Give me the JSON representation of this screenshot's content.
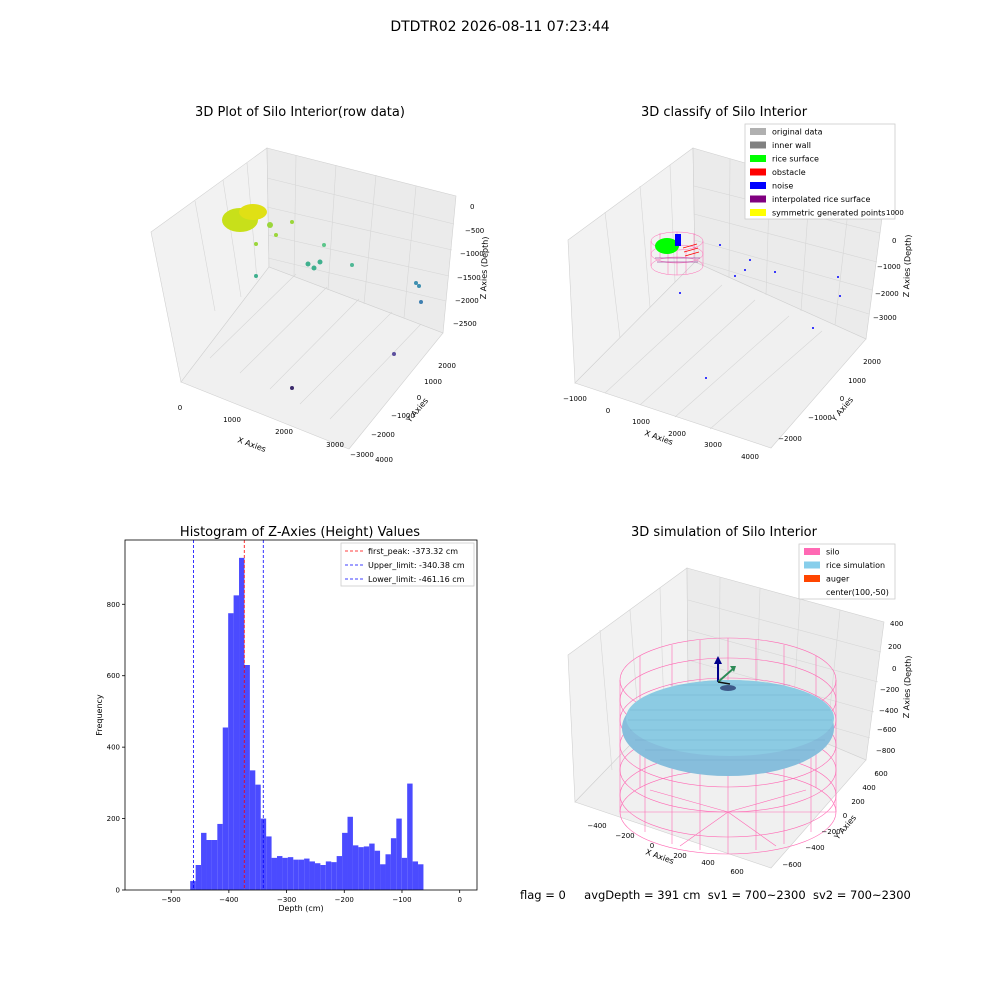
{
  "figure": {
    "suptitle": "DTDTR02 2026-08-11 07:23:44",
    "footer": {
      "flag": "flag = 0",
      "avg_depth": "avgDepth = 391 cm",
      "sv1": "sv1 = 700~2300",
      "sv2": "sv2 = 700~2300"
    }
  },
  "panels": {
    "raw": {
      "title": "3D Plot of Silo Interior(row data)",
      "xlabel": "X Axies",
      "ylabel": "Y Axies",
      "zlabel": "Z Axies (Depth)",
      "xticks": [
        "0",
        "1000",
        "2000",
        "3000",
        "4000"
      ],
      "yticks": [
        "−3000",
        "−2000",
        "−1000",
        "0",
        "1000",
        "2000"
      ],
      "zticks": [
        "0",
        "−500",
        "−1000",
        "−1500",
        "−2000",
        "−2500"
      ]
    },
    "classify": {
      "title": "3D classify of Silo Interior",
      "xlabel": "X Axies",
      "ylabel": "Y Axies",
      "zlabel": "Z Axies (Depth)",
      "xticks": [
        "−1000",
        "0",
        "1000",
        "2000",
        "3000",
        "4000"
      ],
      "yticks": [
        "−2000",
        "−1000",
        "0",
        "1000",
        "2000"
      ],
      "zticks": [
        "1000",
        "0",
        "−1000",
        "−2000",
        "−3000"
      ],
      "legend": [
        {
          "label": "original data",
          "color": "#b0b0b0"
        },
        {
          "label": "inner wall",
          "color": "#808080"
        },
        {
          "label": "rice surface",
          "color": "#00ff00"
        },
        {
          "label": "obstacle",
          "color": "#ff0000"
        },
        {
          "label": "noise",
          "color": "#0000ff"
        },
        {
          "label": "interpolated rice surface",
          "color": "#800080"
        },
        {
          "label": "symmetric generated points",
          "color": "#ffff00"
        }
      ]
    },
    "simulation": {
      "title": "3D simulation of Silo Interior",
      "xlabel": "X Axies",
      "ylabel": "Y Axies",
      "zlabel": "Z Axies (Depth)",
      "xticks": [
        "−400",
        "−200",
        "0",
        "200",
        "400",
        "600"
      ],
      "yticks": [
        "−600",
        "−400",
        "−200",
        "0",
        "200",
        "400",
        "600"
      ],
      "zticks": [
        "400",
        "200",
        "0",
        "−200",
        "−400",
        "−600",
        "−800"
      ],
      "legend": [
        {
          "label": "silo",
          "color": "#ff69b4"
        },
        {
          "label": "rice simulation",
          "color": "#87ceeb"
        },
        {
          "label": "auger",
          "color": "#ff4500"
        },
        {
          "label": "center(100,-50)",
          "color": ""
        }
      ]
    }
  },
  "chart_data": {
    "type": "bar",
    "title": "Histogram of Z-Axies (Height) Values",
    "xlabel": "Depth (cm)",
    "ylabel": "Frequency",
    "xlim": [
      -580,
      30
    ],
    "ylim": [
      0,
      980
    ],
    "xticks": [
      -500,
      -400,
      -300,
      -200,
      -100,
      0
    ],
    "yticks": [
      0,
      200,
      400,
      600,
      800
    ],
    "bar_color": "#4b4bff",
    "bin_start": -467,
    "bin_width": 9.4,
    "values": [
      25,
      70,
      160,
      140,
      140,
      185,
      455,
      775,
      825,
      930,
      630,
      335,
      295,
      200,
      150,
      90,
      95,
      90,
      92,
      85,
      85,
      88,
      80,
      75,
      70,
      80,
      78,
      95,
      160,
      205,
      125,
      120,
      122,
      130,
      110,
      72,
      100,
      145,
      200,
      90,
      298,
      80,
      72
    ],
    "lines": [
      {
        "label": "first_peak: -373.32 cm",
        "x": -373.32,
        "color": "#ff0000"
      },
      {
        "label": "Upper_limit: -340.38 cm",
        "x": -340.38,
        "color": "#0000ff"
      },
      {
        "label": "Lower_limit: -461.16 cm",
        "x": -461.16,
        "color": "#0000ff"
      }
    ]
  }
}
